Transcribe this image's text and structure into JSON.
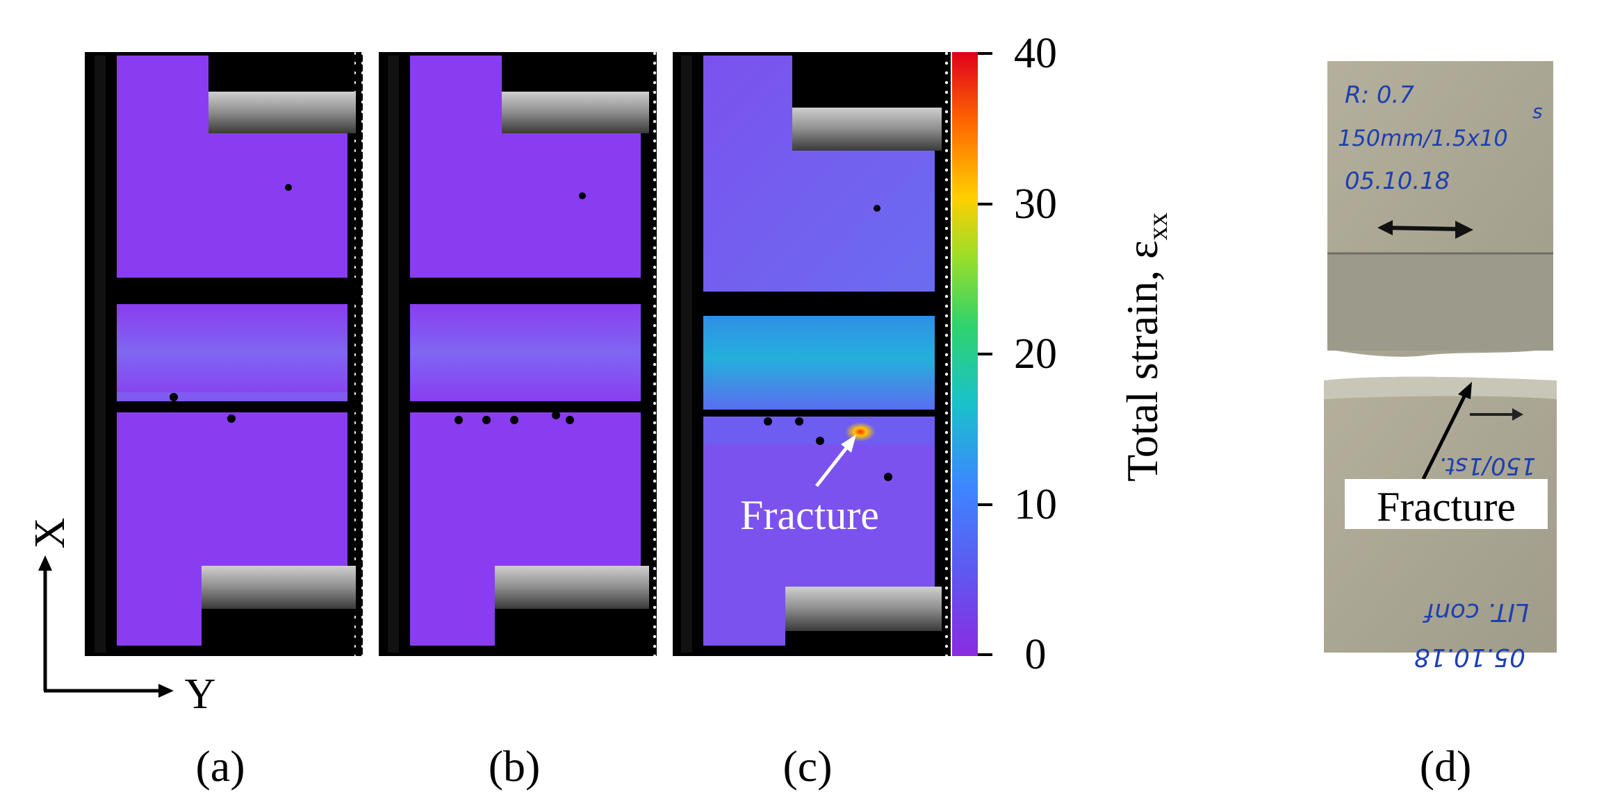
{
  "panels": {
    "a": "(a)",
    "b": "(b)",
    "c": "(c)",
    "d": "(d)"
  },
  "axes": {
    "x_label": "X",
    "y_label": "Y"
  },
  "colorbar": {
    "label_main": "Total strain, ε",
    "label_sub": "xx",
    "ticks": [
      "40",
      "30",
      "20",
      "10",
      "0"
    ],
    "range": [
      0,
      40
    ],
    "colors": [
      "#8a2be2",
      "#3d7bff",
      "#19c2c9",
      "#31d36a",
      "#c6e020",
      "#ffb000",
      "#ff4500",
      "#e0001b"
    ]
  },
  "annotations": {
    "fracture_c": "Fracture",
    "fracture_d": "Fracture"
  },
  "photo_notes": {
    "top_line1": "R: 0.7",
    "top_line2": "150mm/1.5x10",
    "top_line3": "05.10.18",
    "top_side": "s",
    "bottom_line1": "150/1st.",
    "bottom_line2": "LIT. conf",
    "bottom_line3": "05.10.18"
  },
  "colors": {
    "strain_background": "#8a3df0",
    "strain_band": "#7a6cf0",
    "strain_band_c": "#27a4e0",
    "specimen_photo": "#a8a592",
    "ink": "#1e3fb0"
  }
}
